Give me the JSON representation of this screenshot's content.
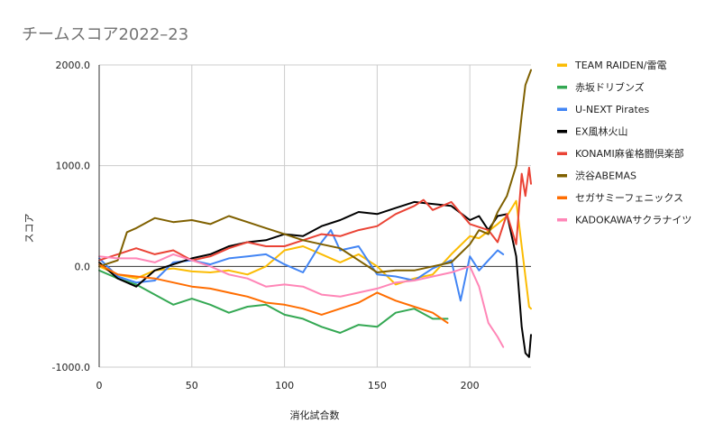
{
  "chart_data": {
    "type": "line",
    "title": "チームスコア2022–23",
    "xlabel": "消化試合数",
    "ylabel": "スコア",
    "xlim": [
      0,
      233
    ],
    "ylim": [
      -1000,
      2000
    ],
    "x_ticks": [
      0,
      50,
      100,
      150,
      200
    ],
    "y_ticks": [
      -1000,
      0,
      1000,
      2000
    ],
    "x_tick_labels": [
      "0",
      "50",
      "100",
      "150",
      "200"
    ],
    "y_tick_labels": [
      "-1000.0",
      "0.0",
      "1000.0",
      "2000.0"
    ],
    "grid": true,
    "legend_position": "right",
    "series": [
      {
        "name": "TEAM RAIDEN/雷電",
        "color": "#fbbc04",
        "x": [
          0,
          10,
          20,
          30,
          40,
          50,
          60,
          70,
          80,
          90,
          100,
          110,
          120,
          130,
          140,
          150,
          160,
          170,
          180,
          190,
          200,
          205,
          210,
          215,
          220,
          225,
          228,
          232,
          233
        ],
        "y": [
          0,
          -80,
          -120,
          -40,
          -20,
          -50,
          -60,
          -40,
          -80,
          0,
          160,
          200,
          120,
          40,
          120,
          0,
          -180,
          -120,
          -80,
          120,
          300,
          280,
          350,
          420,
          500,
          650,
          200,
          -400,
          -420
        ]
      },
      {
        "name": "赤坂ドリブンズ",
        "color": "#34a853",
        "x": [
          0,
          10,
          20,
          30,
          40,
          50,
          60,
          70,
          80,
          90,
          100,
          110,
          120,
          130,
          140,
          150,
          160,
          170,
          180,
          188
        ],
        "y": [
          -40,
          -120,
          -180,
          -280,
          -380,
          -320,
          -380,
          -460,
          -400,
          -380,
          -480,
          -520,
          -600,
          -660,
          -580,
          -600,
          -460,
          -420,
          -520,
          -520
        ]
      },
      {
        "name": "U-NEXT Pirates",
        "color": "#4285f4",
        "x": [
          0,
          10,
          20,
          30,
          40,
          50,
          60,
          70,
          80,
          90,
          100,
          110,
          120,
          125,
          130,
          140,
          150,
          160,
          170,
          180,
          190,
          195,
          200,
          205,
          210,
          215,
          218
        ],
        "y": [
          80,
          -100,
          -160,
          -140,
          40,
          60,
          20,
          80,
          100,
          120,
          20,
          -60,
          240,
          360,
          160,
          200,
          -80,
          -100,
          -140,
          -20,
          60,
          -340,
          100,
          -40,
          60,
          160,
          120
        ]
      },
      {
        "name": "EX風林火山",
        "color": "#000000",
        "x": [
          0,
          10,
          20,
          30,
          40,
          50,
          60,
          70,
          80,
          90,
          100,
          110,
          120,
          130,
          140,
          150,
          160,
          170,
          180,
          190,
          200,
          205,
          210,
          215,
          220,
          225,
          228,
          230,
          232,
          233
        ],
        "y": [
          40,
          -120,
          -200,
          -40,
          20,
          80,
          120,
          200,
          240,
          260,
          320,
          300,
          400,
          460,
          540,
          520,
          580,
          640,
          620,
          600,
          460,
          500,
          360,
          500,
          520,
          100,
          -600,
          -860,
          -900,
          -680
        ]
      },
      {
        "name": "KONAMI麻雀格闘倶楽部",
        "color": "#ea4335",
        "x": [
          0,
          10,
          20,
          30,
          40,
          50,
          60,
          70,
          80,
          90,
          100,
          110,
          120,
          130,
          140,
          150,
          160,
          170,
          175,
          180,
          190,
          200,
          210,
          215,
          220,
          225,
          228,
          230,
          232,
          233
        ],
        "y": [
          60,
          120,
          180,
          120,
          160,
          60,
          100,
          180,
          240,
          200,
          200,
          260,
          320,
          300,
          360,
          400,
          520,
          600,
          660,
          560,
          640,
          420,
          360,
          240,
          520,
          220,
          920,
          700,
          980,
          820
        ]
      },
      {
        "name": "渋谷ABEMAS",
        "color": "#7f6000",
        "x": [
          0,
          10,
          15,
          20,
          30,
          40,
          50,
          60,
          70,
          80,
          90,
          100,
          110,
          120,
          130,
          140,
          150,
          160,
          170,
          180,
          190,
          200,
          205,
          210,
          215,
          220,
          225,
          228,
          230,
          233
        ],
        "y": [
          0,
          60,
          340,
          380,
          480,
          440,
          460,
          420,
          500,
          440,
          380,
          320,
          260,
          220,
          180,
          60,
          -60,
          -40,
          -40,
          0,
          40,
          220,
          360,
          320,
          540,
          700,
          1000,
          1500,
          1800,
          1950
        ]
      },
      {
        "name": "セガサミーフェニックス",
        "color": "#ff6d01",
        "x": [
          0,
          10,
          20,
          30,
          40,
          50,
          60,
          70,
          80,
          90,
          100,
          110,
          120,
          130,
          140,
          150,
          160,
          170,
          180,
          188
        ],
        "y": [
          20,
          -80,
          -100,
          -120,
          -160,
          -200,
          -220,
          -260,
          -300,
          -360,
          -380,
          -420,
          -480,
          -420,
          -360,
          -260,
          -340,
          -400,
          -460,
          -560
        ]
      },
      {
        "name": "KADOKAWAサクラナイツ",
        "color": "#ff86b7",
        "x": [
          0,
          10,
          20,
          30,
          40,
          50,
          60,
          70,
          80,
          90,
          100,
          110,
          120,
          130,
          140,
          150,
          160,
          170,
          180,
          190,
          200,
          205,
          210,
          215,
          218
        ],
        "y": [
          100,
          80,
          80,
          40,
          120,
          60,
          0,
          -80,
          -120,
          -200,
          -180,
          -200,
          -280,
          -300,
          -260,
          -220,
          -160,
          -140,
          -100,
          -60,
          0,
          -200,
          -560,
          -700,
          -800
        ]
      }
    ]
  }
}
